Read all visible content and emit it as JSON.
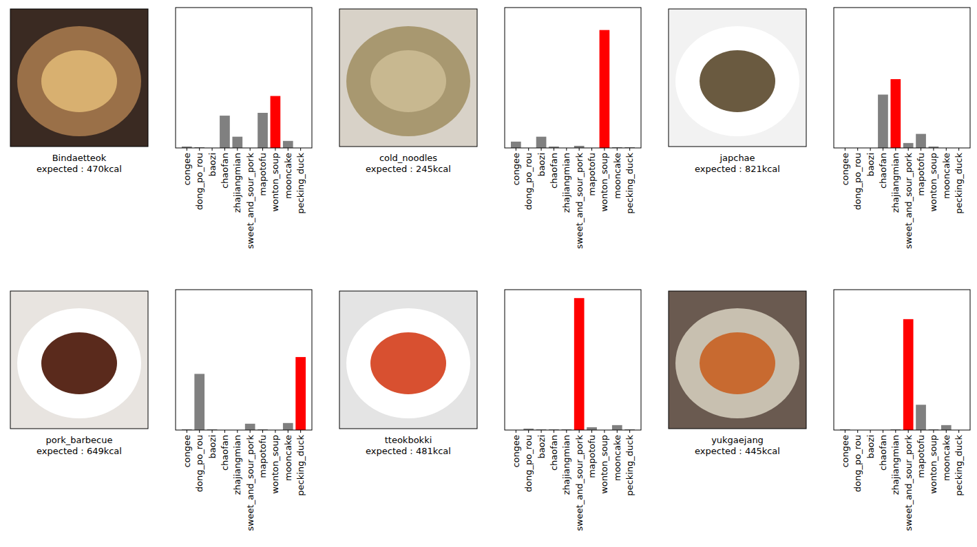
{
  "chart_data": [
    {
      "type": "bar",
      "annotations": [
        "Bindaetteok",
        "expected : 470kcal"
      ],
      "categories": [
        "congee",
        "dong_po_rou",
        "baozi",
        "chaofan",
        "zhajiangmian",
        "sweet_and_sour_pork",
        "mapotofu",
        "wonton_soup",
        "mooncake",
        "pecking_duck"
      ],
      "values": [
        0.01,
        0.005,
        0,
        0.23,
        0.08,
        0,
        0.25,
        0.37,
        0.05,
        0
      ],
      "colors": [
        "#808080",
        "#808080",
        "#808080",
        "#808080",
        "#808080",
        "#808080",
        "#808080",
        "#ff0000",
        "#808080",
        "#808080"
      ],
      "ylim": [
        0,
        1
      ],
      "tick_labels": "x"
    },
    {
      "type": "bar",
      "annotations": [
        "cold_noodles",
        "expected : 245kcal"
      ],
      "categories": [
        "congee",
        "dong_po_rou",
        "baozi",
        "chaofan",
        "zhajiangmian",
        "sweet_and_sour_pork",
        "mapotofu",
        "wonton_soup",
        "mooncake",
        "pecking_duck"
      ],
      "values": [
        0.045,
        0,
        0.08,
        0.01,
        0,
        0.015,
        0,
        0.84,
        0.005,
        0.005
      ],
      "colors": [
        "#808080",
        "#808080",
        "#808080",
        "#808080",
        "#808080",
        "#808080",
        "#808080",
        "#ff0000",
        "#808080",
        "#808080"
      ],
      "ylim": [
        0,
        1
      ],
      "tick_labels": "x"
    },
    {
      "type": "bar",
      "annotations": [
        "japchae",
        "expected : 821kcal"
      ],
      "categories": [
        "congee",
        "dong_po_rou",
        "baozi",
        "chaofan",
        "zhajiangmian",
        "sweet_and_sour_pork",
        "mapotofu",
        "wonton_soup",
        "mooncake",
        "pecking_duck"
      ],
      "values": [
        0,
        0,
        0,
        0.38,
        0.49,
        0.035,
        0.1,
        0.01,
        0,
        0
      ],
      "colors": [
        "#808080",
        "#808080",
        "#808080",
        "#808080",
        "#ff0000",
        "#808080",
        "#808080",
        "#808080",
        "#808080",
        "#808080"
      ],
      "ylim": [
        0,
        1
      ],
      "tick_labels": "x"
    },
    {
      "type": "bar",
      "annotations": [
        "pork_barbecue",
        "expected : 649kcal"
      ],
      "categories": [
        "congee",
        "dong_po_rou",
        "baozi",
        "chaofan",
        "zhajiangmian",
        "sweet_and_sour_pork",
        "mapotofu",
        "wonton_soup",
        "mooncake",
        "pecking_duck"
      ],
      "values": [
        0.005,
        0.4,
        0.005,
        0,
        0,
        0.045,
        0.005,
        0,
        0.05,
        0.52
      ],
      "colors": [
        "#808080",
        "#808080",
        "#808080",
        "#808080",
        "#808080",
        "#808080",
        "#808080",
        "#808080",
        "#808080",
        "#ff0000"
      ],
      "ylim": [
        0,
        1
      ],
      "tick_labels": "x"
    },
    {
      "type": "bar",
      "annotations": [
        "tteokbokki",
        "expected : 481kcal"
      ],
      "categories": [
        "congee",
        "dong_po_rou",
        "baozi",
        "chaofan",
        "zhajiangmian",
        "sweet_and_sour_pork",
        "mapotofu",
        "wonton_soup",
        "mooncake",
        "pecking_duck"
      ],
      "values": [
        0,
        0.01,
        0.005,
        0.005,
        0.005,
        0.94,
        0.02,
        0,
        0.035,
        0.005
      ],
      "colors": [
        "#808080",
        "#808080",
        "#808080",
        "#808080",
        "#808080",
        "#ff0000",
        "#808080",
        "#808080",
        "#808080",
        "#808080"
      ],
      "ylim": [
        0,
        1
      ],
      "tick_labels": "x"
    },
    {
      "type": "bar",
      "annotations": [
        "yukgaejang",
        "expected : 445kcal"
      ],
      "categories": [
        "congee",
        "dong_po_rou",
        "baozi",
        "chaofan",
        "zhajiangmian",
        "sweet_and_sour_pork",
        "mapotofu",
        "wonton_soup",
        "mooncake",
        "pecking_duck"
      ],
      "values": [
        0.005,
        0,
        0,
        0,
        0.005,
        0.79,
        0.18,
        0.005,
        0.035,
        0
      ],
      "colors": [
        "#808080",
        "#808080",
        "#808080",
        "#808080",
        "#808080",
        "#ff0000",
        "#808080",
        "#808080",
        "#808080",
        "#808080"
      ],
      "ylim": [
        0,
        1
      ],
      "tick_labels": "x"
    }
  ]
}
